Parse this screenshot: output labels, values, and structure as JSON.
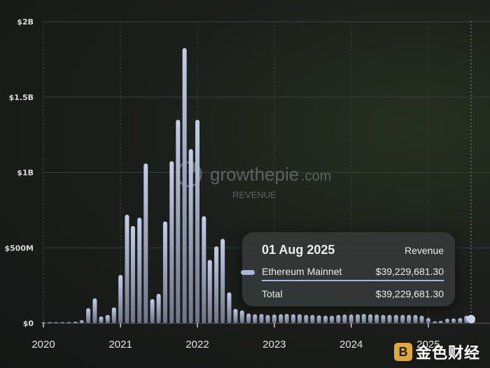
{
  "watermark": {
    "brand": "growthepie",
    "domain": ".com",
    "subtitle": "REVENUE"
  },
  "tooltip": {
    "date": "01 Aug 2025",
    "metric": "Revenue",
    "rows": [
      {
        "label": "Ethereum Mainnet",
        "value": "$39,229,681.30"
      }
    ],
    "total_label": "Total",
    "total_value": "$39,229,681.30"
  },
  "corner_logo": {
    "mark": "B",
    "text": "金色财经"
  },
  "colors": {
    "bar_top": "#c4cde9",
    "bar_bottom": "#6e7588",
    "accent": "#a9b6da"
  },
  "chart_data": {
    "type": "bar",
    "x_axis": {
      "type": "date",
      "min": "2020-01-01",
      "max": "2025-08-01",
      "ticks": [
        "2020",
        "2021",
        "2022",
        "2023",
        "2024",
        "2025"
      ]
    },
    "y_axis": {
      "min": 0,
      "max": 2000000000,
      "ticks": [
        0,
        500000000,
        1000000000,
        1500000000,
        2000000000
      ],
      "tick_labels": [
        "$0",
        "$500M",
        "$1B",
        "$1.5B",
        "$2B"
      ]
    },
    "grid": true,
    "series": [
      {
        "values": [
          {
            "date": "2020-01-01",
            "value": 1000000
          },
          {
            "date": "2020-02-01",
            "value": 2000000
          },
          {
            "date": "2020-03-01",
            "value": 2000000
          },
          {
            "date": "2020-04-01",
            "value": 2000000
          },
          {
            "date": "2020-05-01",
            "value": 4000000
          },
          {
            "date": "2020-06-01",
            "value": 10000000
          },
          {
            "date": "2020-07-01",
            "value": 20000000
          },
          {
            "date": "2020-08-01",
            "value": 100000000
          },
          {
            "date": "2020-09-01",
            "value": 165000000
          },
          {
            "date": "2020-10-01",
            "value": 45000000
          },
          {
            "date": "2020-11-01",
            "value": 55000000
          },
          {
            "date": "2020-12-01",
            "value": 105000000
          },
          {
            "date": "2021-01-01",
            "value": 320000000
          },
          {
            "date": "2021-02-01",
            "value": 720000000
          },
          {
            "date": "2021-03-01",
            "value": 645000000
          },
          {
            "date": "2021-04-01",
            "value": 700000000
          },
          {
            "date": "2021-05-01",
            "value": 1060000000
          },
          {
            "date": "2021-06-01",
            "value": 160000000
          },
          {
            "date": "2021-07-01",
            "value": 195000000
          },
          {
            "date": "2021-08-01",
            "value": 675000000
          },
          {
            "date": "2021-09-01",
            "value": 1075000000
          },
          {
            "date": "2021-10-01",
            "value": 1350000000
          },
          {
            "date": "2021-11-01",
            "value": 1825000000
          },
          {
            "date": "2021-12-01",
            "value": 1155000000
          },
          {
            "date": "2022-01-01",
            "value": 1350000000
          },
          {
            "date": "2022-02-01",
            "value": 710000000
          },
          {
            "date": "2022-03-01",
            "value": 420000000
          },
          {
            "date": "2022-04-01",
            "value": 510000000
          },
          {
            "date": "2022-05-01",
            "value": 560000000
          },
          {
            "date": "2022-06-01",
            "value": 205000000
          },
          {
            "date": "2022-07-01",
            "value": 95000000
          },
          {
            "date": "2022-08-01",
            "value": 85000000
          },
          {
            "date": "2022-09-01",
            "value": 65000000
          },
          {
            "date": "2022-10-01",
            "value": 60000000
          },
          {
            "date": "2022-11-01",
            "value": 62000000
          },
          {
            "date": "2022-12-01",
            "value": 55000000
          },
          {
            "date": "2023-01-01",
            "value": 58000000
          },
          {
            "date": "2023-02-01",
            "value": 60000000
          },
          {
            "date": "2023-03-01",
            "value": 62000000
          },
          {
            "date": "2023-04-01",
            "value": 60000000
          },
          {
            "date": "2023-05-01",
            "value": 60000000
          },
          {
            "date": "2023-06-01",
            "value": 55000000
          },
          {
            "date": "2023-07-01",
            "value": 55000000
          },
          {
            "date": "2023-08-01",
            "value": 52000000
          },
          {
            "date": "2023-09-01",
            "value": 50000000
          },
          {
            "date": "2023-10-01",
            "value": 50000000
          },
          {
            "date": "2023-11-01",
            "value": 55000000
          },
          {
            "date": "2023-12-01",
            "value": 58000000
          },
          {
            "date": "2024-01-01",
            "value": 58000000
          },
          {
            "date": "2024-02-01",
            "value": 60000000
          },
          {
            "date": "2024-03-01",
            "value": 62000000
          },
          {
            "date": "2024-04-01",
            "value": 60000000
          },
          {
            "date": "2024-05-01",
            "value": 58000000
          },
          {
            "date": "2024-06-01",
            "value": 55000000
          },
          {
            "date": "2024-07-01",
            "value": 55000000
          },
          {
            "date": "2024-08-01",
            "value": 55000000
          },
          {
            "date": "2024-09-01",
            "value": 55000000
          },
          {
            "date": "2024-10-01",
            "value": 55000000
          },
          {
            "date": "2024-11-01",
            "value": 55000000
          },
          {
            "date": "2024-12-01",
            "value": 50000000
          },
          {
            "date": "2025-01-01",
            "value": 35000000
          },
          {
            "date": "2025-02-01",
            "value": 12000000
          },
          {
            "date": "2025-03-01",
            "value": 15000000
          },
          {
            "date": "2025-04-01",
            "value": 30000000
          },
          {
            "date": "2025-05-01",
            "value": 32000000
          },
          {
            "date": "2025-06-01",
            "value": 35000000
          },
          {
            "date": "2025-07-01",
            "value": 50000000
          },
          {
            "date": "2025-08-01",
            "value": 39229681.3
          }
        ]
      }
    ]
  }
}
